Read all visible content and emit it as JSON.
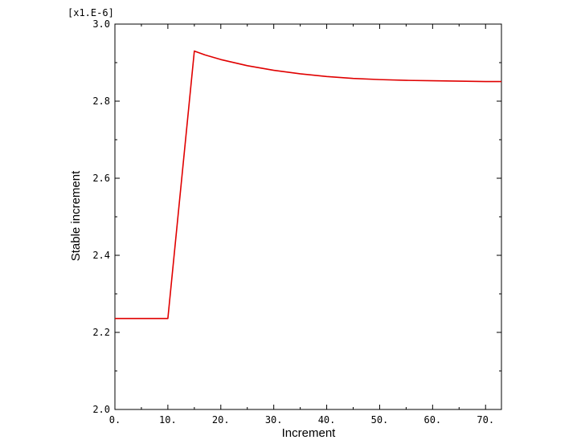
{
  "chart_data": {
    "type": "line",
    "xlabel": "Increment",
    "ylabel": "Stable increment",
    "y_multiplier_label": "[x1.E-6]",
    "xlim": [
      0,
      73
    ],
    "ylim": [
      2.0,
      3.0
    ],
    "x_ticks": [
      0,
      10,
      20,
      30,
      40,
      50,
      60,
      70
    ],
    "x_tick_labels": [
      "0.",
      "10.",
      "20.",
      "30.",
      "40.",
      "50.",
      "60.",
      "70."
    ],
    "y_ticks": [
      2.0,
      2.2,
      2.4,
      2.6,
      2.8,
      3.0
    ],
    "y_tick_labels": [
      "2.0",
      "2.2",
      "2.4",
      "2.6",
      "2.8",
      "3.0"
    ],
    "grid": false,
    "series": [
      {
        "color": "#e00000",
        "x": [
          0,
          10,
          15,
          17,
          20,
          25,
          30,
          35,
          40,
          45,
          50,
          55,
          60,
          65,
          70,
          73
        ],
        "y": [
          2.236,
          2.236,
          2.93,
          2.92,
          2.908,
          2.892,
          2.88,
          2.871,
          2.864,
          2.859,
          2.856,
          2.854,
          2.853,
          2.852,
          2.851,
          2.851
        ]
      }
    ]
  }
}
